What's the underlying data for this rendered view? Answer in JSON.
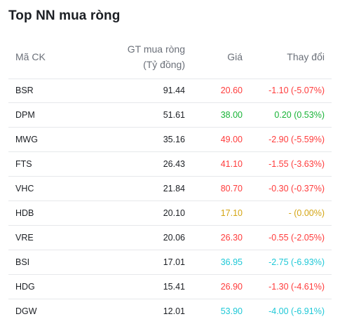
{
  "title": "Top NN mua ròng",
  "headers": {
    "code": "Mã CK",
    "gt_line1": "GT mua ròng",
    "gt_line2": "(Tỷ đồng)",
    "price": "Giá",
    "change": "Thay đổi"
  },
  "colors": {
    "red": "#ff3b3b",
    "green": "#17b336",
    "yellow": "#d4a514",
    "cyan": "#1ec8d7"
  },
  "rows": [
    {
      "code": "BSR",
      "value": "91.44",
      "price": "20.60",
      "change": "-1.10 (-5.07%)",
      "color": "red"
    },
    {
      "code": "DPM",
      "value": "51.61",
      "price": "38.00",
      "change": "0.20 (0.53%)",
      "color": "green"
    },
    {
      "code": "MWG",
      "value": "35.16",
      "price": "49.00",
      "change": "-2.90 (-5.59%)",
      "color": "red"
    },
    {
      "code": "FTS",
      "value": "26.43",
      "price": "41.10",
      "change": "-1.55 (-3.63%)",
      "color": "red"
    },
    {
      "code": "VHC",
      "value": "21.84",
      "price": "80.70",
      "change": "-0.30 (-0.37%)",
      "color": "red"
    },
    {
      "code": "HDB",
      "value": "20.10",
      "price": "17.10",
      "change": "- (0.00%)",
      "color": "yellow"
    },
    {
      "code": "VRE",
      "value": "20.06",
      "price": "26.30",
      "change": "-0.55 (-2.05%)",
      "color": "red"
    },
    {
      "code": "BSI",
      "value": "17.01",
      "price": "36.95",
      "change": "-2.75 (-6.93%)",
      "color": "cyan"
    },
    {
      "code": "HDG",
      "value": "15.41",
      "price": "26.90",
      "change": "-1.30 (-4.61%)",
      "color": "red"
    },
    {
      "code": "DGW",
      "value": "12.01",
      "price": "53.90",
      "change": "-4.00 (-6.91%)",
      "color": "cyan"
    }
  ]
}
